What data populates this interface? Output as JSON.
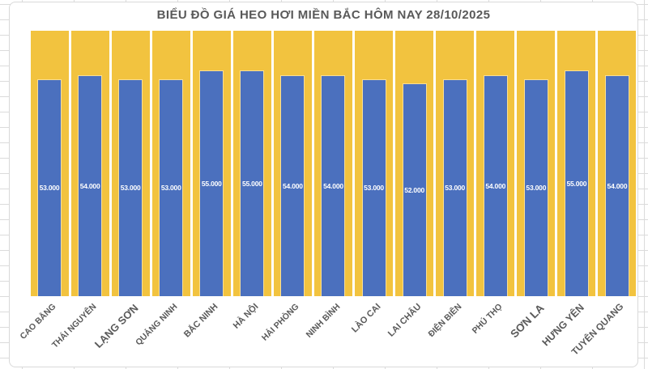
{
  "chart_data": {
    "type": "bar",
    "title": "BIỂU ĐỒ GIÁ HEO HƠI MIỀN BẮC HÔM NAY 28/10/2025",
    "categories": [
      "CAO BẰNG",
      "THÁI NGUYÊN",
      "LẠNG SƠN",
      "QUẢNG NINH",
      "BẮC NINH",
      "HÀ NỘI",
      "HẢI PHÒNG",
      "NINH BÌNH",
      "LÀO CAI",
      "LAI CHÂU",
      "ĐIỆN BIÊN",
      "PHÚ THỌ",
      "SƠN LA",
      "HƯNG YÊN",
      "TUYÊN QUANG"
    ],
    "values": [
      53000,
      54000,
      53000,
      53000,
      55000,
      55000,
      54000,
      54000,
      53000,
      52000,
      53000,
      54000,
      53000,
      55000,
      54000
    ],
    "value_labels": [
      "53.000",
      "54.000",
      "53.000",
      "53.000",
      "55.000",
      "55.000",
      "54.000",
      "54.000",
      "53.000",
      "52.000",
      "53.000",
      "54.000",
      "53.000",
      "55.000",
      "54.000"
    ],
    "xlabel": "",
    "ylabel": "",
    "ylim": [
      0,
      65000
    ],
    "grid": false,
    "legend": "none",
    "value_label_position": "center-of-bar",
    "colors": {
      "value_bar": "#4B70BE",
      "background_bar": "#F2C33F",
      "value_label_text": "#FFFFFF",
      "axis_label_text": "#595959",
      "title_text": "#595959",
      "chart_background": "#FFFFFF",
      "sheet_gridline": "#DBDBDB"
    }
  }
}
